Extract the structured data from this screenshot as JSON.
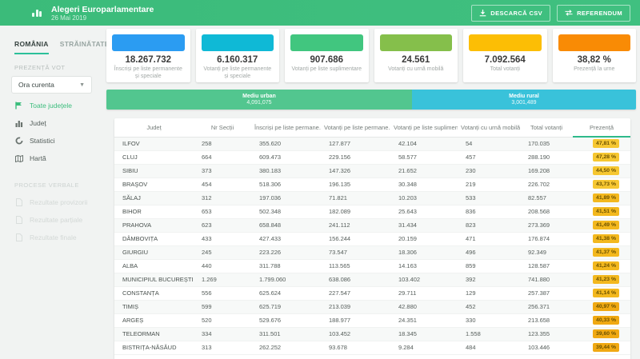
{
  "header": {
    "title": "Alegeri Europarlamentare",
    "date": "26 Mai 2019",
    "csv_button": "DESCARCĂ CSV",
    "referendum_button": "REFERENDUM"
  },
  "sidebar": {
    "tabs": [
      {
        "label": "ROMÂNIA",
        "active": true
      },
      {
        "label": "STRĂINĂTATE",
        "active": false
      }
    ],
    "section_presence": "PREZENȚĂ VOT",
    "time_select_value": "Ora curenta",
    "nav": [
      {
        "label": "Toate județele",
        "icon": "flag-icon",
        "active": true
      },
      {
        "label": "Județ",
        "icon": "bar-chart-icon",
        "active": false
      },
      {
        "label": "Statistici",
        "icon": "donut-chart-icon",
        "active": false
      },
      {
        "label": "Hartă",
        "icon": "map-icon",
        "active": false
      }
    ],
    "section_reports": "PROCESE VERBALE",
    "disabled_nav": [
      {
        "label": "Rezultate provizorii",
        "icon": "file-icon"
      },
      {
        "label": "Rezultate parțiale",
        "icon": "file-icon"
      },
      {
        "label": "Rezultate finale",
        "icon": "file-icon"
      }
    ]
  },
  "cards": [
    {
      "value": "18.267.732",
      "label": "Înscriși pe liste permanente și speciale",
      "color": "#2b9cf2"
    },
    {
      "value": "6.160.317",
      "label": "Votanți pe liste permanente și speciale",
      "color": "#0fb9d6"
    },
    {
      "value": "907.686",
      "label": "Votanți pe liste suplimentare",
      "color": "#41c67f"
    },
    {
      "value": "24.561",
      "label": "Votanți cu urnă mobilă",
      "color": "#85bf4b"
    },
    {
      "value": "7.092.564",
      "label": "Total votanți",
      "color": "#fcbe05"
    },
    {
      "value": "38,82 %",
      "label": "Prezență la urne",
      "color": "#f98b05"
    }
  ],
  "distribution": {
    "urban": {
      "label": "Mediu urban",
      "value": "4,091,075",
      "color": "#52c68f",
      "percent": 57.7
    },
    "rural": {
      "label": "Mediu rural",
      "value": "3,001,489",
      "color": "#39c2da",
      "percent": 42.3
    }
  },
  "table": {
    "columns": [
      "Județ",
      "Nr Secții",
      "Înscriși pe liste permane...",
      "Votanți pe liste permane...",
      "Votanți pe liste suplimen...",
      "Votanți cu urnă mobilă",
      "Total votanți",
      "Prezență"
    ],
    "sorted_column": "Prezență",
    "rows": [
      [
        "ILFOV",
        "258",
        "355.620",
        "127.877",
        "42.104",
        "54",
        "170.035",
        "47,81 %"
      ],
      [
        "CLUJ",
        "664",
        "609.473",
        "229.156",
        "58.577",
        "457",
        "288.190",
        "47,28 %"
      ],
      [
        "SIBIU",
        "373",
        "380.183",
        "147.326",
        "21.652",
        "230",
        "169.208",
        "44,50 %"
      ],
      [
        "BRAŞOV",
        "454",
        "518.306",
        "196.135",
        "30.348",
        "219",
        "226.702",
        "43,73 %"
      ],
      [
        "SĂLAJ",
        "312",
        "197.036",
        "71.821",
        "10.203",
        "533",
        "82.557",
        "41,89 %"
      ],
      [
        "BIHOR",
        "653",
        "502.348",
        "182.089",
        "25.643",
        "836",
        "208.568",
        "41,51 %"
      ],
      [
        "PRAHOVA",
        "623",
        "658.848",
        "241.112",
        "31.434",
        "823",
        "273.369",
        "41,49 %"
      ],
      [
        "DÂMBOVIȚA",
        "433",
        "427.433",
        "156.244",
        "20.159",
        "471",
        "176.874",
        "41,38 %"
      ],
      [
        "GIURGIU",
        "245",
        "223.226",
        "73.547",
        "18.306",
        "496",
        "92.349",
        "41,37 %"
      ],
      [
        "ALBA",
        "440",
        "311.788",
        "113.565",
        "14.163",
        "859",
        "128.587",
        "41,24 %"
      ],
      [
        "MUNICIPIUL BUCUREȘTI",
        "1.269",
        "1.799.060",
        "638.086",
        "103.402",
        "392",
        "741.880",
        "41,23 %"
      ],
      [
        "CONSTANȚA",
        "556",
        "625.624",
        "227.547",
        "29.711",
        "129",
        "257.387",
        "41,14 %"
      ],
      [
        "TIMIȘ",
        "599",
        "625.719",
        "213.039",
        "42.880",
        "452",
        "256.371",
        "40,97 %"
      ],
      [
        "ARGEȘ",
        "520",
        "529.676",
        "188.977",
        "24.351",
        "330",
        "213.658",
        "40,33 %"
      ],
      [
        "TELEORMAN",
        "334",
        "311.501",
        "103.452",
        "18.345",
        "1.558",
        "123.355",
        "39,60 %"
      ],
      [
        "BISTRIȚA-NĂSĂUD",
        "313",
        "262.252",
        "93.678",
        "9.284",
        "484",
        "103.446",
        "39,44 %"
      ]
    ]
  }
}
